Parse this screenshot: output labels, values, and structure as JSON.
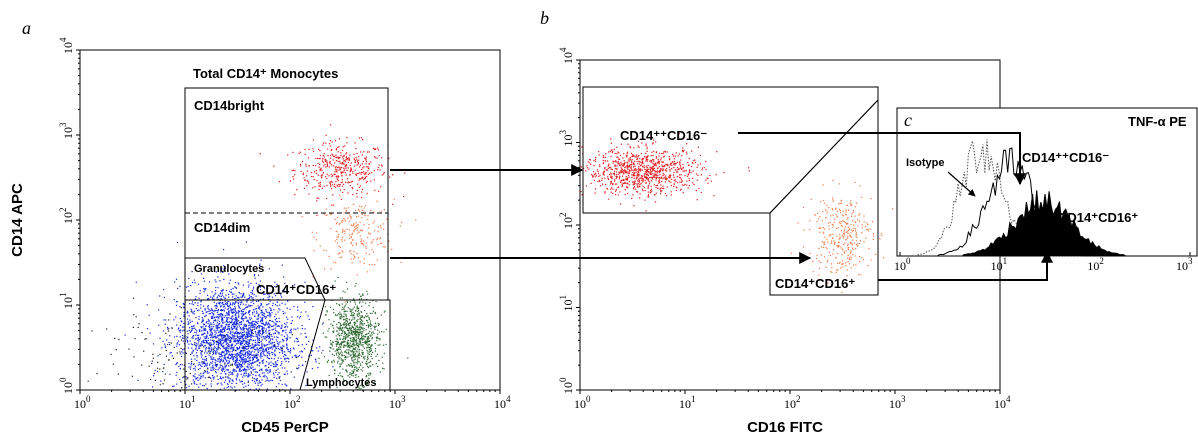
{
  "colors": {
    "bright": "#e0191c",
    "dim": "#f07a4a",
    "granulocytes": "#1428e0",
    "lymphocytes": "#2f6a34",
    "other": "#222222",
    "line": "#000000"
  },
  "chart_data": [
    {
      "panel": "a",
      "type": "scatter",
      "xlabel": "CD45 PerCP",
      "ylabel": "CD14 APC",
      "x_scale": "log",
      "y_scale": "log",
      "xlim": [
        1,
        10000
      ],
      "ylim": [
        1,
        10000
      ],
      "xtick_labels": [
        "10^0",
        "10^1",
        "10^2",
        "10^3",
        "10^4"
      ],
      "ytick_labels": [
        "10^0",
        "10^1",
        "10^2",
        "10^3",
        "10^4"
      ],
      "annotations": {
        "total": "Total CD14⁺ Monocytes",
        "bright": "CD14bright",
        "dim": "CD14dim",
        "granulocytes": "Granulocytes",
        "cd14cd16": "CD14⁺CD16⁺",
        "lymphocytes": "Lymphocytes"
      },
      "populations": [
        {
          "name": "CD14bright",
          "center": [
            300,
            400
          ],
          "spread_log": [
            0.22,
            0.16
          ],
          "count": 420
        },
        {
          "name": "CD14dim",
          "center": [
            420,
            70
          ],
          "spread_log": [
            0.18,
            0.2
          ],
          "count": 220
        },
        {
          "name": "Granulocytes",
          "center": [
            30,
            4
          ],
          "spread_log": [
            0.28,
            0.32
          ],
          "count": 2600
        },
        {
          "name": "Lymphocytes",
          "center": [
            400,
            4
          ],
          "spread_log": [
            0.12,
            0.24
          ],
          "count": 900
        },
        {
          "name": "Debris",
          "center": [
            10,
            2
          ],
          "spread_log": [
            0.5,
            0.3
          ],
          "count": 160
        }
      ]
    },
    {
      "panel": "b",
      "type": "scatter",
      "xlabel": "CD16 FITC",
      "ylabel": "",
      "x_scale": "log",
      "y_scale": "log",
      "xlim": [
        1,
        10000
      ],
      "ylim": [
        1,
        10000
      ],
      "xtick_labels": [
        "10^0",
        "10^1",
        "10^2",
        "10^3",
        "10^4"
      ],
      "ytick_labels": [
        "10^0",
        "10^1",
        "10^2",
        "10^3",
        "10^4"
      ],
      "annotations": {
        "cd14hi": "CD14⁺⁺CD16⁻",
        "cd14cd16": "CD14⁺CD16⁺"
      },
      "populations": [
        {
          "name": "CD14++CD16-",
          "center": [
            4,
            450
          ],
          "spread_log": [
            0.28,
            0.14
          ],
          "count": 900
        },
        {
          "name": "CD14+CD16+",
          "center": [
            300,
            80
          ],
          "spread_log": [
            0.15,
            0.25
          ],
          "count": 320
        }
      ]
    },
    {
      "panel": "c",
      "type": "area",
      "xlabel": "TNF-α PE",
      "x_scale": "log",
      "xlim": [
        1,
        1000
      ],
      "xtick_labels": [
        "10^0",
        "10^1",
        "10^2",
        "10^3"
      ],
      "annotations": {
        "title": "TNF-α PE",
        "isotype": "Isotype",
        "cd14hi": "CD14⁺⁺CD16⁻",
        "cd14cd16": "CD14⁺CD16⁺"
      },
      "series": [
        {
          "name": "Isotype",
          "style": "dotted",
          "peak_x": 7,
          "peak_height": 0.85,
          "width_log": 0.22
        },
        {
          "name": "CD14++CD16-",
          "style": "line",
          "peak_x": 14,
          "peak_height": 0.7,
          "width_log": 0.25
        },
        {
          "name": "CD14+CD16+",
          "style": "filled",
          "peak_x": 30,
          "peak_height": 0.42,
          "width_log": 0.3
        }
      ]
    }
  ],
  "panel_letters": {
    "a": "a",
    "b": "b",
    "c": "c"
  },
  "sup": {
    "exp0": "0",
    "exp1": "1",
    "exp2": "2",
    "exp3": "3",
    "exp4": "4",
    "base": "10"
  }
}
